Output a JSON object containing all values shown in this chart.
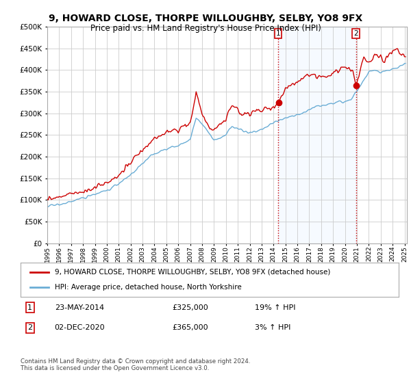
{
  "title": "9, HOWARD CLOSE, THORPE WILLOUGHBY, SELBY, YO8 9FX",
  "subtitle": "Price paid vs. HM Land Registry's House Price Index (HPI)",
  "legend_line1": "9, HOWARD CLOSE, THORPE WILLOUGHBY, SELBY, YO8 9FX (detached house)",
  "legend_line2": "HPI: Average price, detached house, North Yorkshire",
  "annotation1_label": "1",
  "annotation1_date": "23-MAY-2014",
  "annotation1_price": "£325,000",
  "annotation1_hpi": "19% ↑ HPI",
  "annotation2_label": "2",
  "annotation2_date": "02-DEC-2020",
  "annotation2_price": "£365,000",
  "annotation2_hpi": "3% ↑ HPI",
  "footer": "Contains HM Land Registry data © Crown copyright and database right 2024.\nThis data is licensed under the Open Government Licence v3.0.",
  "hpi_color": "#6aadd5",
  "price_color": "#cc0000",
  "shade_color": "#ddeeff",
  "vline_color": "#cc0000",
  "background_color": "#ffffff",
  "grid_color": "#cccccc",
  "ylim": [
    0,
    500000
  ],
  "yticks": [
    0,
    50000,
    100000,
    150000,
    200000,
    250000,
    300000,
    350000,
    400000,
    450000,
    500000
  ],
  "x_start_year": 1995,
  "x_end_year": 2025,
  "sale1_year": 2014.38,
  "sale1_value": 325000,
  "sale2_year": 2020.92,
  "sale2_value": 365000
}
